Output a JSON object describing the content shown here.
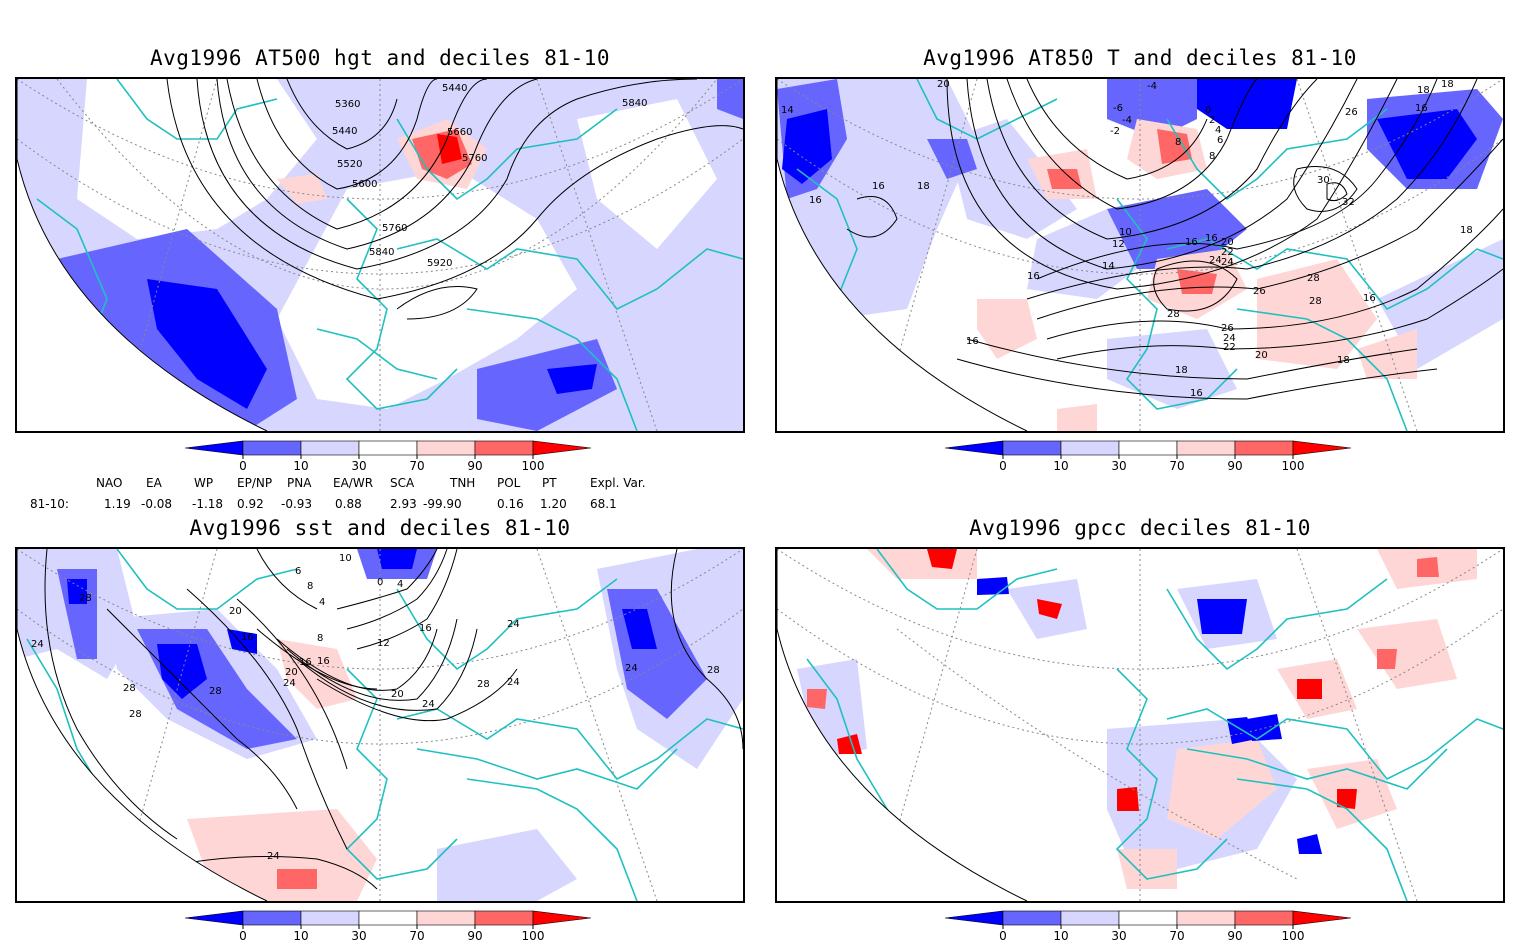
{
  "panels": {
    "hgt": {
      "title": "Avg1996 AT500 hgt and deciles 81-10",
      "contour_labels": [
        "5360",
        "5440",
        "5440",
        "5520",
        "5600",
        "5660",
        "5760",
        "5760",
        "5840",
        "5840",
        "5920"
      ]
    },
    "t850": {
      "title": "Avg1996 AT850 T and deciles 81-10",
      "contour_labels": [
        "20",
        "14",
        "16",
        "16",
        "18",
        "16",
        "-6",
        "-4",
        "-2",
        "-4",
        "0",
        "2",
        "4",
        "6",
        "8",
        "8",
        "10",
        "12",
        "14",
        "16",
        "16",
        "20",
        "22",
        "24",
        "24",
        "26",
        "28",
        "26",
        "28",
        "24",
        "22",
        "20",
        "18",
        "16",
        "26",
        "30",
        "32",
        "28",
        "18",
        "16",
        "18",
        "18",
        "16",
        "18",
        "16"
      ]
    },
    "sst": {
      "title": "Avg1996 sst and deciles 81-10",
      "contour_labels": [
        "28",
        "24",
        "28",
        "28",
        "16",
        "20",
        "16",
        "20",
        "24",
        "28",
        "24",
        "0",
        "4",
        "8",
        "12",
        "16",
        "16",
        "20",
        "24",
        "28",
        "24",
        "24",
        "28",
        "6",
        "8",
        "10",
        "4",
        "24"
      ]
    },
    "gpcc": {
      "title": "Avg1996 gpcc deciles 81-10"
    }
  },
  "colorbar": {
    "ticks": [
      "0",
      "10",
      "30",
      "70",
      "90",
      "100"
    ],
    "colors": [
      "#0000ff",
      "#6666ff",
      "#d6d6ff",
      "#ffffff",
      "#ffd6d6",
      "#ff6666",
      "#ff0000"
    ]
  },
  "indices": {
    "headers": [
      "NAO",
      "EA",
      "WP",
      "EP/NP",
      "PNA",
      "EA/WR",
      "SCA",
      "TNH",
      "POL",
      "PT",
      "Expl. Var."
    ],
    "row_label": "81-10:",
    "values": [
      "1.19",
      "-0.08",
      "-1.18",
      "0.92",
      "-0.93",
      "0.88",
      "2.93",
      "-99.90",
      "0.16",
      "1.20",
      "68.1"
    ]
  },
  "colors": {
    "coast": "#20c0c0",
    "grid": "#888888",
    "strong_blue": "#0000ff",
    "mid_blue": "#6666ff",
    "light_blue": "#d6d6ff",
    "light_red": "#ffd6d6",
    "mid_red": "#ff6666",
    "strong_red": "#ff0000"
  }
}
